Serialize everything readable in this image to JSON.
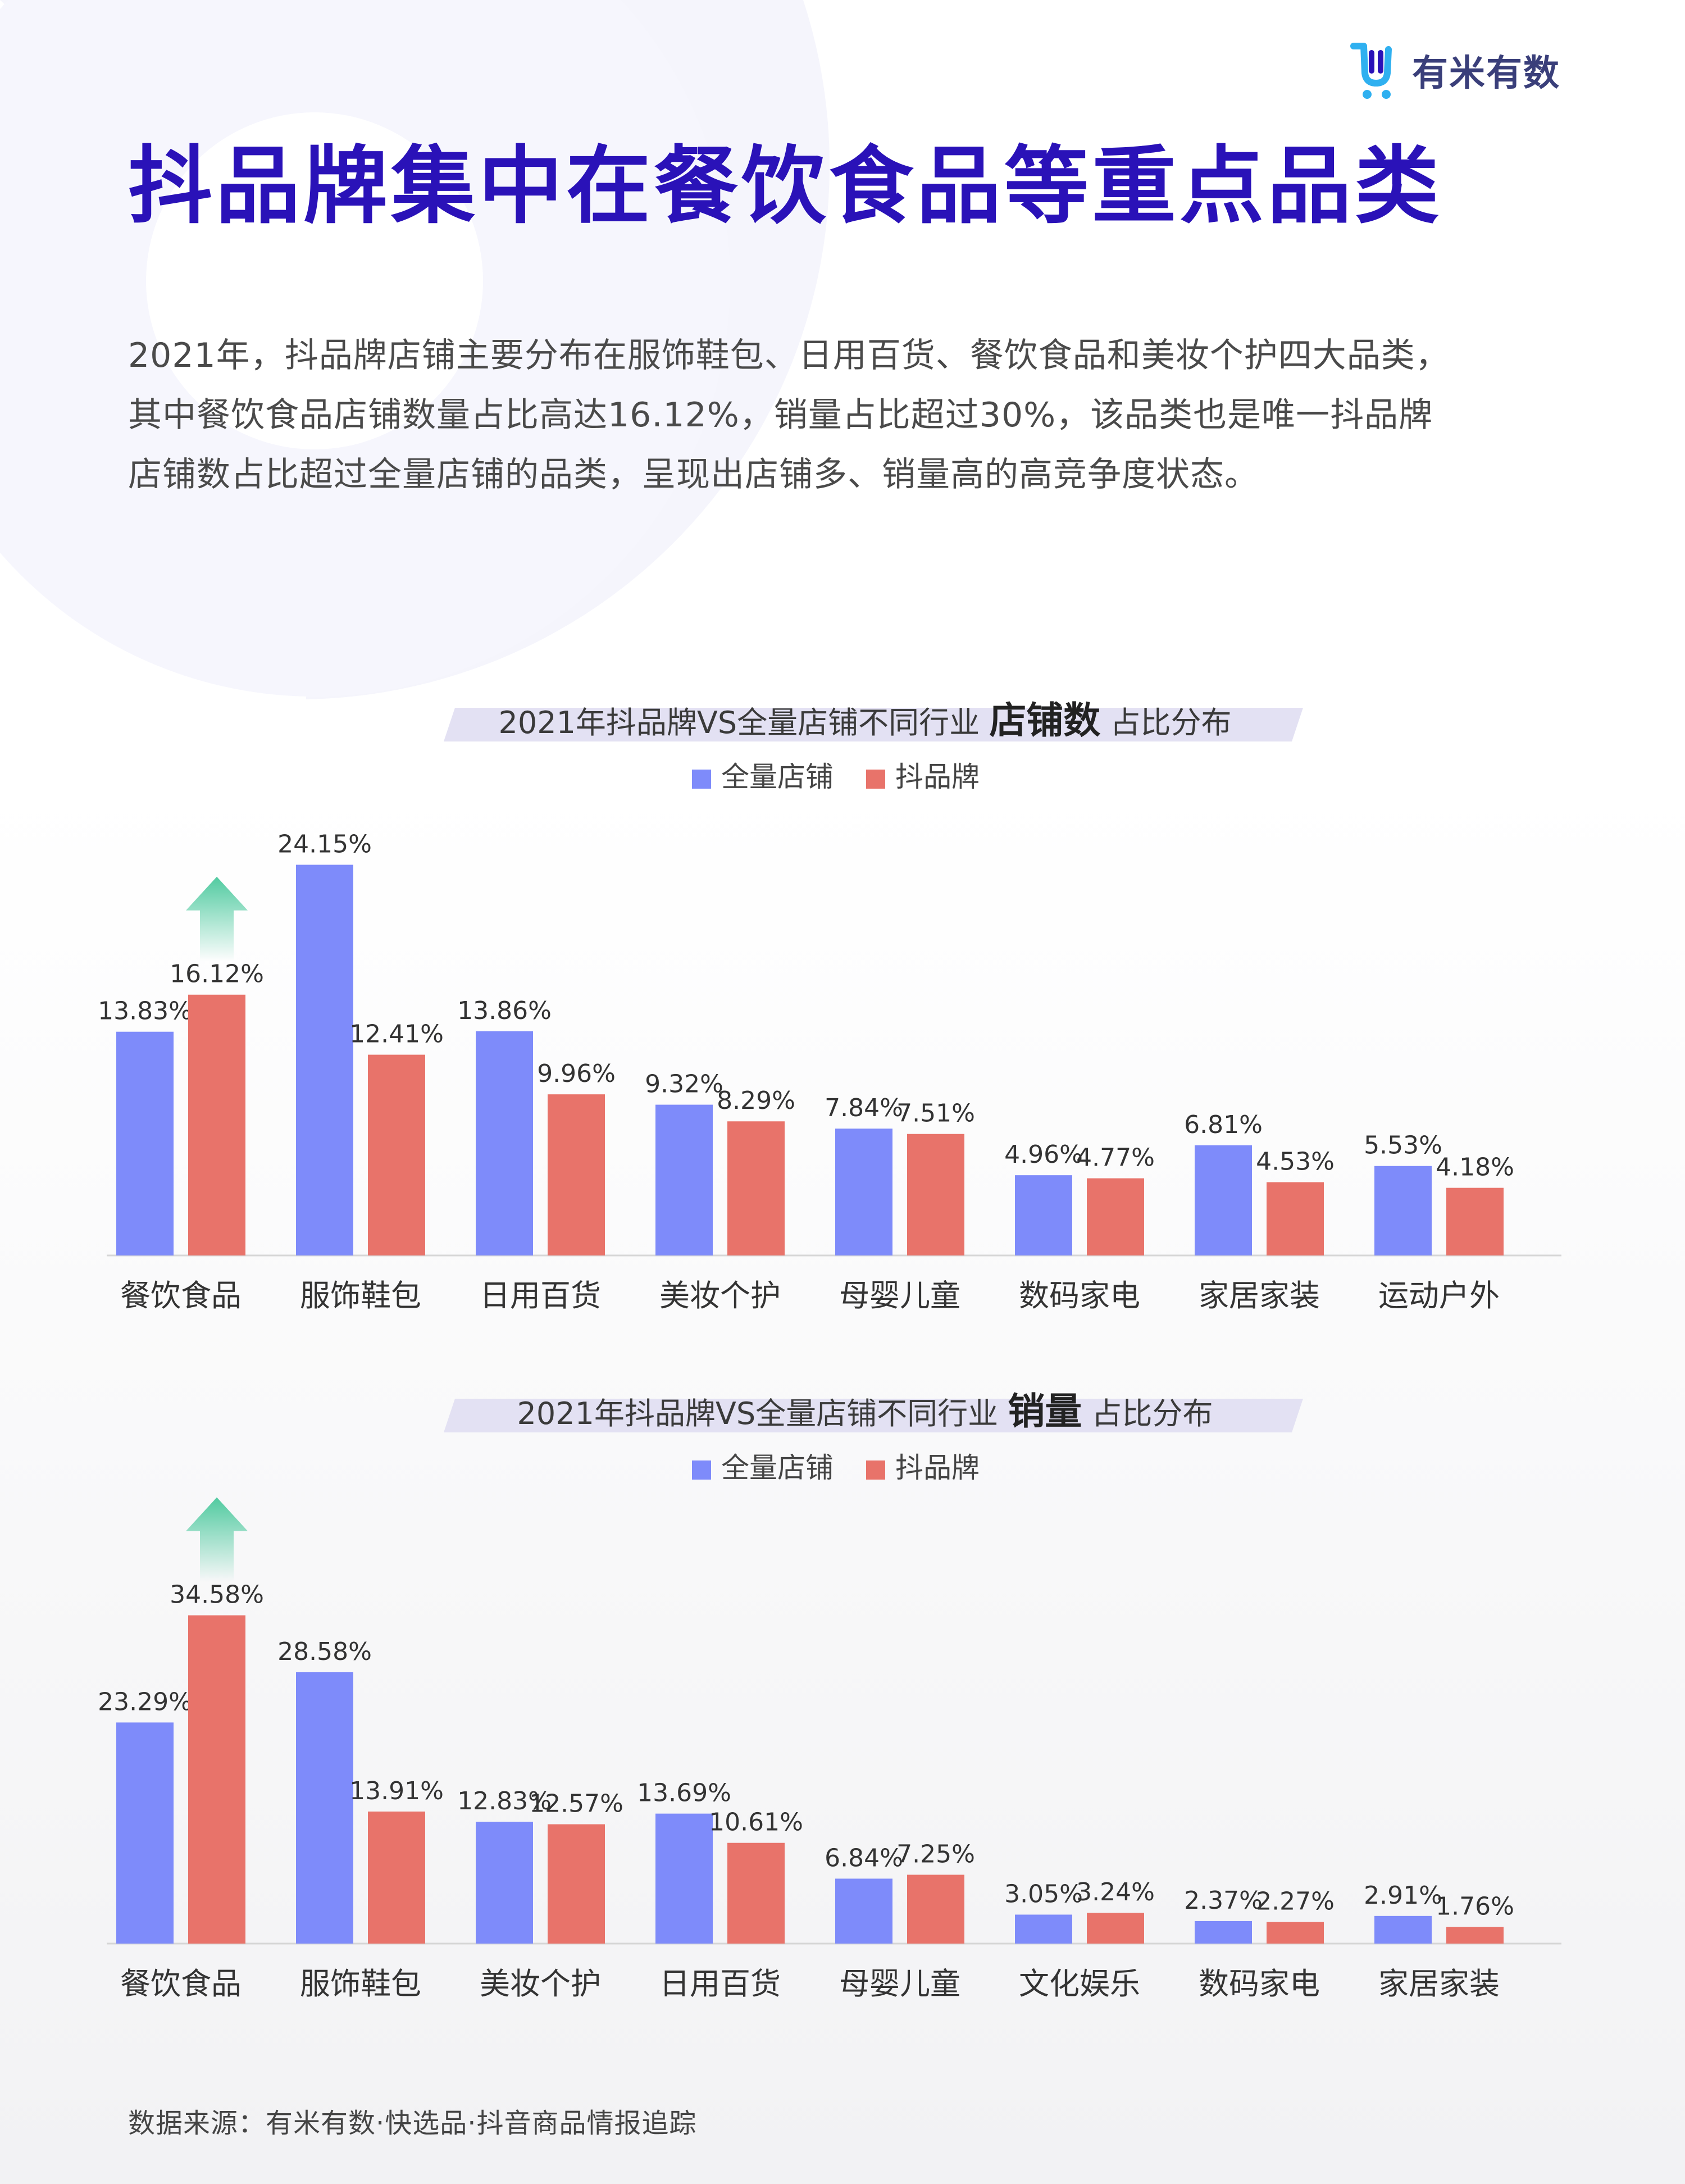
{
  "brand": {
    "name": "有米有数",
    "logo_icon": "shopping-cart-u-icon"
  },
  "page": {
    "title": "抖品牌集中在餐饮食品等重点品类",
    "intro_lines": [
      "2021年，抖品牌店铺主要分布在服饰鞋包、日用百货、餐饮食品和美妆个护四大品类，",
      "其中餐饮食品店铺数量占比高达16.12%，销量占比超过30%，该品类也是唯一抖品牌",
      "店铺数占比超过全量店铺的品类，呈现出店铺多、销量高的高竞争度状态。"
    ],
    "source": "数据来源：有米有数·快选品·抖音商品情报追踪"
  },
  "colors": {
    "series_all": "#7e8bfa",
    "series_brand": "#e8736a",
    "title": "#2a12b8",
    "arrow": "#3ec596"
  },
  "chart_data": [
    {
      "type": "bar",
      "title_pre": "2021年抖品牌VS全量店铺不同行业",
      "title_em": "店铺数",
      "title_post": "占比分布",
      "legend_position": "top-center",
      "unit": "%",
      "ylim": [
        0,
        25
      ],
      "highlight_category_index": 0,
      "categories": [
        "餐饮食品",
        "服饰鞋包",
        "日用百货",
        "美妆个护",
        "母婴儿童",
        "数码家电",
        "家居家装",
        "运动户外"
      ],
      "series": [
        {
          "name": "全量店铺",
          "color": "#7e8bfa",
          "values": [
            13.83,
            24.15,
            13.86,
            9.32,
            7.84,
            4.96,
            6.81,
            5.53
          ],
          "labels": [
            "13.83%",
            "24.15%",
            "13.86%",
            "9.32%",
            "7.84%",
            "4.96%",
            "6.81%",
            "5.53%"
          ]
        },
        {
          "name": "抖品牌",
          "color": "#e8736a",
          "values": [
            16.12,
            12.41,
            9.96,
            8.29,
            7.51,
            4.77,
            4.53,
            4.18
          ],
          "labels": [
            "16.12%",
            "12.41%",
            "9.96%",
            "8.29%",
            "7.51%",
            "4.77%",
            "4.53%",
            "4.18%"
          ]
        }
      ]
    },
    {
      "type": "bar",
      "title_pre": "2021年抖品牌VS全量店铺不同行业",
      "title_em": "销量",
      "title_post": "占比分布",
      "legend_position": "top-center",
      "unit": "%",
      "ylim": [
        0,
        40
      ],
      "highlight_category_index": 0,
      "categories": [
        "餐饮食品",
        "服饰鞋包",
        "美妆个护",
        "日用百货",
        "母婴儿童",
        "文化娱乐",
        "数码家电",
        "家居家装"
      ],
      "series": [
        {
          "name": "全量店铺",
          "color": "#7e8bfa",
          "values": [
            23.29,
            28.58,
            12.83,
            13.69,
            6.84,
            3.05,
            2.37,
            2.91
          ],
          "labels": [
            "23.29%",
            "28.58%",
            "12.83%",
            "13.69%",
            "6.84%",
            "3.05%",
            "2.37%",
            "2.91%"
          ]
        },
        {
          "name": "抖品牌",
          "color": "#e8736a",
          "values": [
            34.58,
            13.91,
            12.57,
            10.61,
            7.25,
            3.24,
            2.27,
            1.76
          ],
          "labels": [
            "34.58%",
            "13.91%",
            "12.57%",
            "10.61%",
            "7.25%",
            "3.24%",
            "2.27%",
            "1.76%"
          ]
        }
      ]
    }
  ]
}
